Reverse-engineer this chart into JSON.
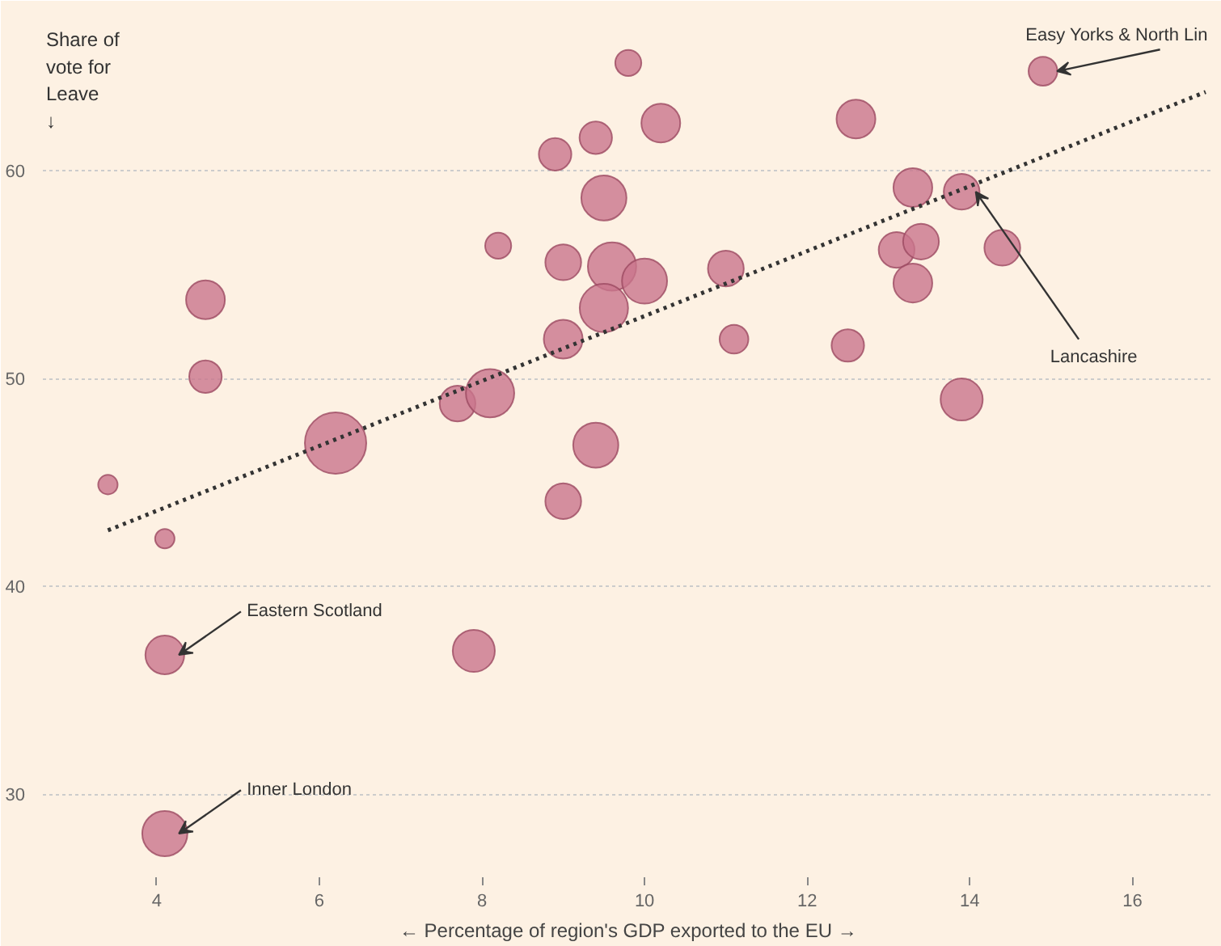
{
  "chart_data": {
    "type": "bubble",
    "xlabel": "← Percentage of region's GDP exported to the EU →",
    "ylabel": "Share of\nvote for\nLeave\n↓",
    "xlim": [
      2.6,
      17.0
    ],
    "ylim": [
      26.0,
      67.8
    ],
    "xticks": [
      4,
      6,
      8,
      10,
      12,
      14,
      16
    ],
    "yticks": [
      30,
      40,
      50,
      60
    ],
    "grid": "y",
    "series": [
      {
        "color": "#c9768c",
        "x": [
          3.4,
          4.1,
          4.6,
          4.6,
          4.1,
          4.1,
          6.2,
          7.7,
          8.1,
          8.2,
          7.9,
          8.9,
          9.0,
          9.0,
          9.0,
          9.4,
          9.5,
          9.6,
          9.5,
          9.4,
          9.8,
          10.0,
          10.2,
          11.0,
          11.1,
          12.6,
          12.5,
          13.3,
          13.9,
          13.1,
          13.4,
          13.3,
          14.4,
          13.9,
          14.9
        ],
        "values": [
          44.9,
          42.3,
          53.8,
          50.1,
          36.7,
          28.1,
          46.9,
          48.8,
          49.3,
          56.4,
          36.9,
          60.8,
          55.6,
          51.9,
          44.1,
          61.6,
          58.7,
          55.4,
          53.4,
          46.8,
          65.2,
          54.7,
          62.3,
          55.3,
          51.9,
          62.5,
          51.6,
          59.2,
          59.0,
          56.2,
          56.6,
          54.6,
          56.3,
          49.0,
          64.8
        ],
        "sizes": [
          0.1,
          0.1,
          0.4,
          0.28,
          0.4,
          0.54,
          1,
          0.34,
          0.62,
          0.18,
          0.47,
          0.28,
          0.34,
          0.4,
          0.34,
          0.28,
          0.54,
          0.62,
          0.62,
          0.54,
          0.18,
          0.54,
          0.4,
          0.34,
          0.22,
          0.4,
          0.28,
          0.4,
          0.34,
          0.34,
          0.34,
          0.4,
          0.34,
          0.47,
          0.22
        ]
      },
      {
        "type": "line",
        "color": "#333333",
        "line_style": "dotted",
        "x": [
          3.4,
          16.9
        ],
        "values": [
          42.7,
          63.8
        ]
      }
    ],
    "annotations": [
      {
        "text": "Easy Yorks & North Lin",
        "x": 14.9,
        "y": 64.8
      },
      {
        "text": "Lancashire",
        "x": 13.9,
        "y": 59.0
      },
      {
        "text": "Eastern Scotland",
        "x": 4.1,
        "y": 36.7
      },
      {
        "text": "Inner London",
        "x": 4.1,
        "y": 28.1
      }
    ]
  }
}
